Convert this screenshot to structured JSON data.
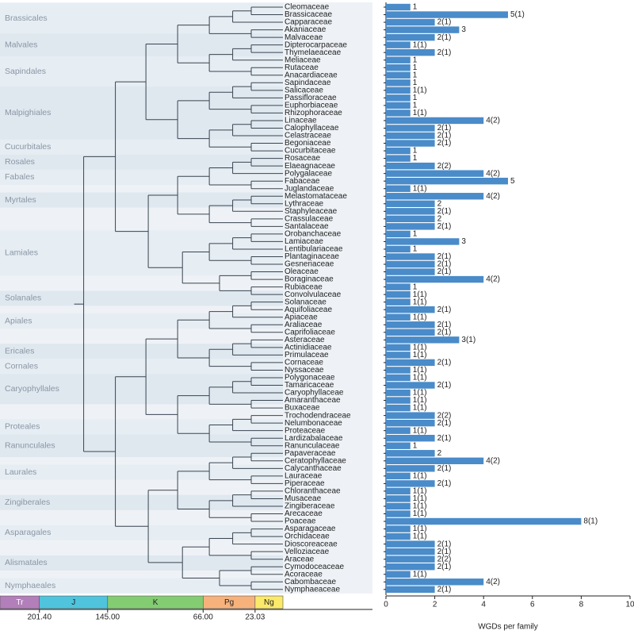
{
  "chart_data": {
    "type": "bar",
    "orientation": "horizontal",
    "categories": [
      "Cleomaceae",
      "Brassicaceae",
      "Capparaceae",
      "Akaniaceae",
      "Malvaceae",
      "Dipterocarpaceae",
      "Thymelaeaceae",
      "Meliaceae",
      "Rutaceae",
      "Anacardiaceae",
      "Sapindaceae",
      "Salicaceae",
      "Passifloraceae",
      "Euphorbiaceae",
      "Rhizophoraceae",
      "Linaceae",
      "Calophyllaceae",
      "Celastraceae",
      "Begoniaceae",
      "Cucurbitaceae",
      "Rosaceae",
      "Elaeagnaceae",
      "Polygalaceae",
      "Fabaceae",
      "Juglandaceae",
      "Melastomataceae",
      "Lythraceae",
      "Staphyleaceae",
      "Crassulaceae",
      "Santalaceae",
      "Orobanchaceae",
      "Lamiaceae",
      "Lentibulariaceae",
      "Plantaginaceae",
      "Gesneriaceae",
      "Oleaceae",
      "Boraginaceae",
      "Rubiaceae",
      "Convolvulaceae",
      "Solanaceae",
      "Aquifoliaceae",
      "Apiaceae",
      "Araliaceae",
      "Caprifoliaceae",
      "Asteraceae",
      "Actinidiaceae",
      "Primulaceae",
      "Cornaceae",
      "Nyssaceae",
      "Polygonaceae",
      "Tamaricaceae",
      "Caryophyllaceae",
      "Amaranthaceae",
      "Buxaceae",
      "Trochodendraceae",
      "Nelumbonaceae",
      "Proteaceae",
      "Lardizabalaceae",
      "Ranunculaceae",
      "Papaveraceae",
      "Ceratophyllaceae",
      "Calycanthaceae",
      "Lauraceae",
      "Piperaceae",
      "Chloranthaceae",
      "Musaceae",
      "Zingiberaceae",
      "Arecaceae",
      "Poaceae",
      "Asparagaceae",
      "Orchidaceae",
      "Dioscoreaceae",
      "Velloziaceae",
      "Araceae",
      "Cymodoceaceae",
      "Acoraceae",
      "Cabombaceae",
      "Nymphaeaceae"
    ],
    "values": [
      1,
      5,
      2,
      3,
      2,
      1,
      2,
      1,
      1,
      1,
      1,
      1,
      1,
      1,
      1,
      4,
      2,
      2,
      2,
      1,
      1,
      2,
      4,
      5,
      1,
      4,
      2,
      2,
      2,
      2,
      1,
      3,
      1,
      2,
      2,
      2,
      4,
      1,
      1,
      1,
      2,
      1,
      2,
      2,
      3,
      1,
      1,
      2,
      1,
      1,
      2,
      1,
      1,
      1,
      2,
      2,
      1,
      2,
      1,
      2,
      4,
      2,
      1,
      2,
      1,
      1,
      1,
      1,
      8,
      1,
      1,
      2,
      2,
      2,
      2,
      1,
      4,
      2
    ],
    "value_labels": [
      "1",
      "5(1)",
      "2(1)",
      "3",
      "2(1)",
      "1(1)",
      "2(1)",
      "1",
      "1",
      "1",
      "1",
      "1(1)",
      "1",
      "1",
      "1(1)",
      "4(2)",
      "2(1)",
      "2(1)",
      "2(1)",
      "1",
      "1",
      "2(2)",
      "4(2)",
      "5",
      "1(1)",
      "4(2)",
      "2",
      "2(1)",
      "2",
      "2(1)",
      "1",
      "3",
      "1",
      "2(1)",
      "2(1)",
      "2(1)",
      "4(2)",
      "1",
      "1(1)",
      "1(1)",
      "2(1)",
      "1(1)",
      "2(1)",
      "2(1)",
      "3(1)",
      "1(1)",
      "1(1)",
      "2(1)",
      "1(1)",
      "1(1)",
      "2(1)",
      "1(1)",
      "1(1)",
      "1(1)",
      "2(2)",
      "2(1)",
      "1(1)",
      "2(1)",
      "1",
      "2",
      "4(2)",
      "2(1)",
      "1(1)",
      "2(1)",
      "1(1)",
      "1(1)",
      "1(1)",
      "1(1)",
      "8(1)",
      "1(1)",
      "1(1)",
      "2(1)",
      "2(1)",
      "2(2)",
      "2(1)",
      "1(1)",
      "4(2)",
      "2(1)"
    ],
    "color": "#4a8bc9",
    "xlim": [
      0,
      10
    ],
    "xticks": [
      0,
      2,
      4,
      6,
      8,
      10
    ],
    "xlabel": "WGDs per family",
    "orders": [
      "Brassicales",
      "Malvales",
      "Sapindales",
      "Malpighiales",
      "Cucurbitales",
      "Rosales",
      "Fabales",
      "Myrtales",
      "Lamiales",
      "Solanales",
      "Apiales",
      "Ericales",
      "Cornales",
      "Caryophyllales",
      "Proteales",
      "Ranunculales",
      "Laurales",
      "Zingiberales",
      "Asparagales",
      "Alismatales",
      "Nymphaeales"
    ],
    "timescale": {
      "periods": [
        "Tr",
        "J",
        "K",
        "Pg",
        "Ng"
      ],
      "colors": [
        "#b27fba",
        "#4fc4dc",
        "#84cc72",
        "#f7b27c",
        "#fbe96a"
      ],
      "xlim": [
        234,
        0
      ],
      "xticks": [
        {
          "value": 201.4,
          "label": "201.40"
        },
        {
          "value": 145,
          "label": "145.00"
        },
        {
          "value": 66,
          "label": "66.00"
        },
        {
          "value": 23.03,
          "label": "23.03"
        }
      ]
    }
  }
}
